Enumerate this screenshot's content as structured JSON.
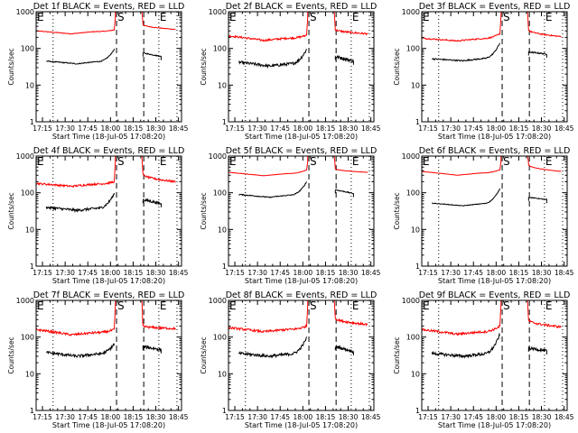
{
  "figure": {
    "layout": "3x3 grid of detector light curves",
    "common": {
      "ylabel": "Counts/sec",
      "xlabel": "Start Time (18-Jul-05 17:08:20)",
      "y_scale": "log",
      "ylim": [
        1,
        1000
      ],
      "y_tick_labels": [
        "1",
        "10",
        "100",
        "1000"
      ],
      "x_tick_labels": [
        "17:15",
        "17:30",
        "17:45",
        "18:00",
        "18:15",
        "18:30",
        "18:45"
      ],
      "x_tick_minutes": [
        15,
        30,
        45,
        60,
        75,
        90,
        105
      ],
      "xlim_minutes": [
        10.8,
        107.0
      ],
      "markers": [
        {
          "label": "E",
          "minute": 22,
          "style": "dotted"
        },
        {
          "label": "S",
          "minute": 64,
          "style": "dashed"
        },
        {
          "label": "",
          "minute": 82,
          "style": "dashed"
        },
        {
          "label": "E",
          "minute": 92,
          "style": "dotted"
        },
        {
          "label": "",
          "minute": 104,
          "style": "dotted"
        }
      ],
      "colors": {
        "events": "#000000",
        "lld": "#ff0000",
        "axes": "#000000",
        "background": "#ffffff"
      }
    }
  },
  "chart_data": [
    {
      "type": "line",
      "title": "Det 1f BLACK = Events, RED = LLD",
      "xlabel": "Start Time (18-Jul-05 17:08:20)",
      "ylabel": "Counts/sec",
      "series": [
        {
          "name": "LLD",
          "color": "#ff0000",
          "pre": {
            "start": 300,
            "min": 250,
            "end": 320
          },
          "post": {
            "start": 450,
            "end": 330
          },
          "noise": 0.02
        },
        {
          "name": "Events",
          "color": "#000000",
          "pre": {
            "start": 45,
            "min": 38,
            "end": 95
          },
          "post": {
            "start": 75,
            "end": 60
          },
          "noise": 0.03
        }
      ]
    },
    {
      "type": "line",
      "title": "Det 2f BLACK = Events, RED = LLD",
      "xlabel": "Start Time (18-Jul-05 17:08:20)",
      "ylabel": "Counts/sec",
      "series": [
        {
          "name": "LLD",
          "color": "#ff0000",
          "pre": {
            "start": 220,
            "min": 165,
            "end": 230
          },
          "post": {
            "start": 330,
            "end": 250
          },
          "noise": 0.06
        },
        {
          "name": "Events",
          "color": "#000000",
          "pre": {
            "start": 42,
            "min": 33,
            "end": 95
          },
          "post": {
            "start": 60,
            "end": 45
          },
          "noise": 0.09
        }
      ]
    },
    {
      "type": "line",
      "title": "Det 3f BLACK = Events, RED = LLD",
      "xlabel": "Start Time (18-Jul-05 17:08:20)",
      "ylabel": "Counts/sec",
      "series": [
        {
          "name": "LLD",
          "color": "#ff0000",
          "pre": {
            "start": 190,
            "min": 160,
            "end": 250
          },
          "post": {
            "start": 320,
            "end": 210
          },
          "noise": 0.04
        },
        {
          "name": "Events",
          "color": "#000000",
          "pre": {
            "start": 52,
            "min": 46,
            "end": 140
          },
          "post": {
            "start": 80,
            "end": 70
          },
          "noise": 0.04
        }
      ]
    },
    {
      "type": "line",
      "title": "Det 4f BLACK = Events, RED = LLD",
      "xlabel": "Start Time (18-Jul-05 17:08:20)",
      "ylabel": "Counts/sec",
      "series": [
        {
          "name": "LLD",
          "color": "#ff0000",
          "pre": {
            "start": 180,
            "min": 150,
            "end": 200
          },
          "post": {
            "start": 320,
            "end": 200
          },
          "noise": 0.06
        },
        {
          "name": "Events",
          "color": "#000000",
          "pre": {
            "start": 40,
            "min": 33,
            "end": 95
          },
          "post": {
            "start": 65,
            "end": 50
          },
          "noise": 0.08
        }
      ]
    },
    {
      "type": "line",
      "title": "Det 5f BLACK = Events, RED = LLD",
      "xlabel": "Start Time (18-Jul-05 17:08:20)",
      "ylabel": "Counts/sec",
      "series": [
        {
          "name": "LLD",
          "color": "#ff0000",
          "pre": {
            "start": 360,
            "min": 290,
            "end": 420
          },
          "post": {
            "start": 450,
            "end": 360
          },
          "noise": 0.01
        },
        {
          "name": "Events",
          "color": "#000000",
          "pre": {
            "start": 90,
            "min": 75,
            "end": 200
          },
          "post": {
            "start": 120,
            "end": 95
          },
          "noise": 0.03
        }
      ]
    },
    {
      "type": "line",
      "title": "Det 6f BLACK = Events, RED = LLD",
      "xlabel": "Start Time (18-Jul-05 17:08:20)",
      "ylabel": "Counts/sec",
      "series": [
        {
          "name": "LLD",
          "color": "#ff0000",
          "pre": {
            "start": 380,
            "min": 300,
            "end": 420
          },
          "post": {
            "start": 580,
            "end": 380
          },
          "noise": 0.01
        },
        {
          "name": "Events",
          "color": "#000000",
          "pre": {
            "start": 52,
            "min": 44,
            "end": 130
          },
          "post": {
            "start": 75,
            "end": 65
          },
          "noise": 0.02
        }
      ]
    },
    {
      "type": "line",
      "title": "Det 7f BLACK = Events, RED = LLD",
      "xlabel": "Start Time (18-Jul-05 17:08:20)",
      "ylabel": "Counts/sec",
      "series": [
        {
          "name": "LLD",
          "color": "#ff0000",
          "pre": {
            "start": 160,
            "min": 115,
            "end": 160
          },
          "post": {
            "start": 200,
            "end": 170
          },
          "noise": 0.07
        },
        {
          "name": "Events",
          "color": "#000000",
          "pre": {
            "start": 38,
            "min": 30,
            "end": 65
          },
          "post": {
            "start": 55,
            "end": 45
          },
          "noise": 0.09
        }
      ]
    },
    {
      "type": "line",
      "title": "Det 8f BLACK = Events, RED = LLD",
      "xlabel": "Start Time (18-Jul-05 17:08:20)",
      "ylabel": "Counts/sec",
      "series": [
        {
          "name": "LLD",
          "color": "#ff0000",
          "pre": {
            "start": 180,
            "min": 140,
            "end": 200
          },
          "post": {
            "start": 330,
            "end": 220
          },
          "noise": 0.07
        },
        {
          "name": "Events",
          "color": "#000000",
          "pre": {
            "start": 36,
            "min": 30,
            "end": 95
          },
          "post": {
            "start": 55,
            "end": 40
          },
          "noise": 0.09
        }
      ]
    },
    {
      "type": "line",
      "title": "Det 9f BLACK = Events, RED = LLD",
      "xlabel": "Start Time (18-Jul-05 17:08:20)",
      "ylabel": "Counts/sec",
      "series": [
        {
          "name": "LLD",
          "color": "#ff0000",
          "pre": {
            "start": 160,
            "min": 120,
            "end": 200
          },
          "post": {
            "start": 290,
            "end": 190
          },
          "noise": 0.07
        },
        {
          "name": "Events",
          "color": "#000000",
          "pre": {
            "start": 36,
            "min": 30,
            "end": 120
          },
          "post": {
            "start": 50,
            "end": 42
          },
          "noise": 0.09
        }
      ]
    }
  ]
}
